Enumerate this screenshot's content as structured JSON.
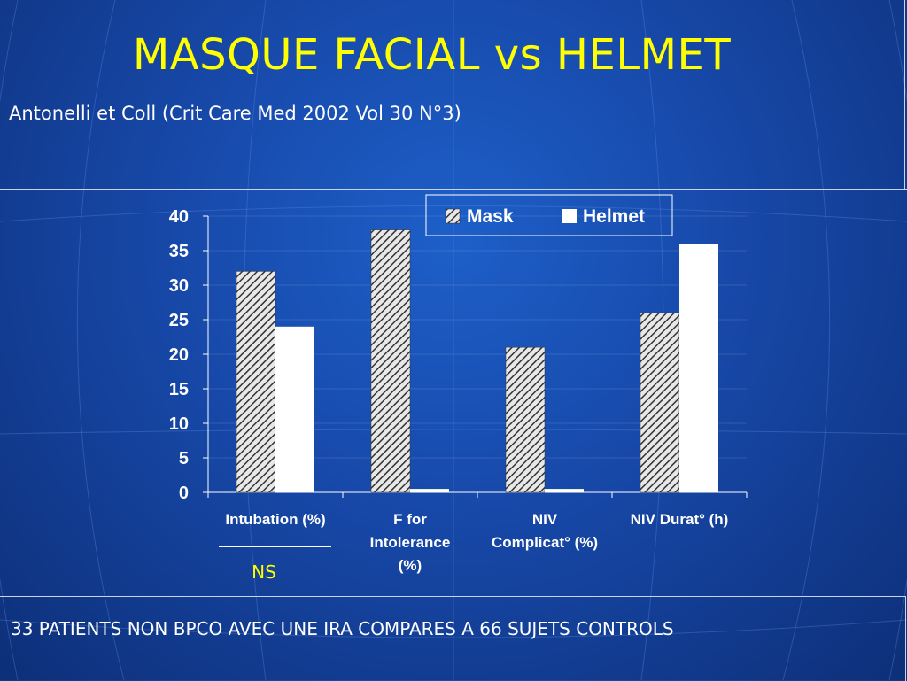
{
  "slide": {
    "title": "MASQUE FACIAL vs HELMET",
    "subtitle": "Antonelli et Coll (Crit Care Med 2002 Vol 30 N°3)",
    "annotation": "NS",
    "footer": "33 PATIENTS NON BPCO AVEC UNE IRA COMPARES A 66 SUJETS CONTROLS"
  },
  "colors": {
    "title": "#ffff00",
    "background": "#1748a8",
    "mask_fill": "#999999",
    "helmet_fill": "#ffffff"
  },
  "chart_data": {
    "type": "bar",
    "title": "",
    "xlabel": "",
    "ylabel": "",
    "categories": [
      [
        "Intubation (%)"
      ],
      [
        "F for",
        "Intolerance",
        "(%)"
      ],
      [
        "NIV",
        "Complicat° (%)"
      ],
      [
        "NIV Durat° (h)"
      ]
    ],
    "series": [
      {
        "name": "Mask",
        "values": [
          32,
          38,
          21,
          26
        ],
        "pattern": "hatched"
      },
      {
        "name": "Helmet",
        "values": [
          24,
          0.5,
          0.5,
          36
        ],
        "pattern": "solid-white"
      }
    ],
    "ylim": [
      0,
      40
    ],
    "yticks": [
      0,
      5,
      10,
      15,
      20,
      25,
      30,
      35,
      40
    ],
    "grid": true,
    "legend": "top-right"
  }
}
